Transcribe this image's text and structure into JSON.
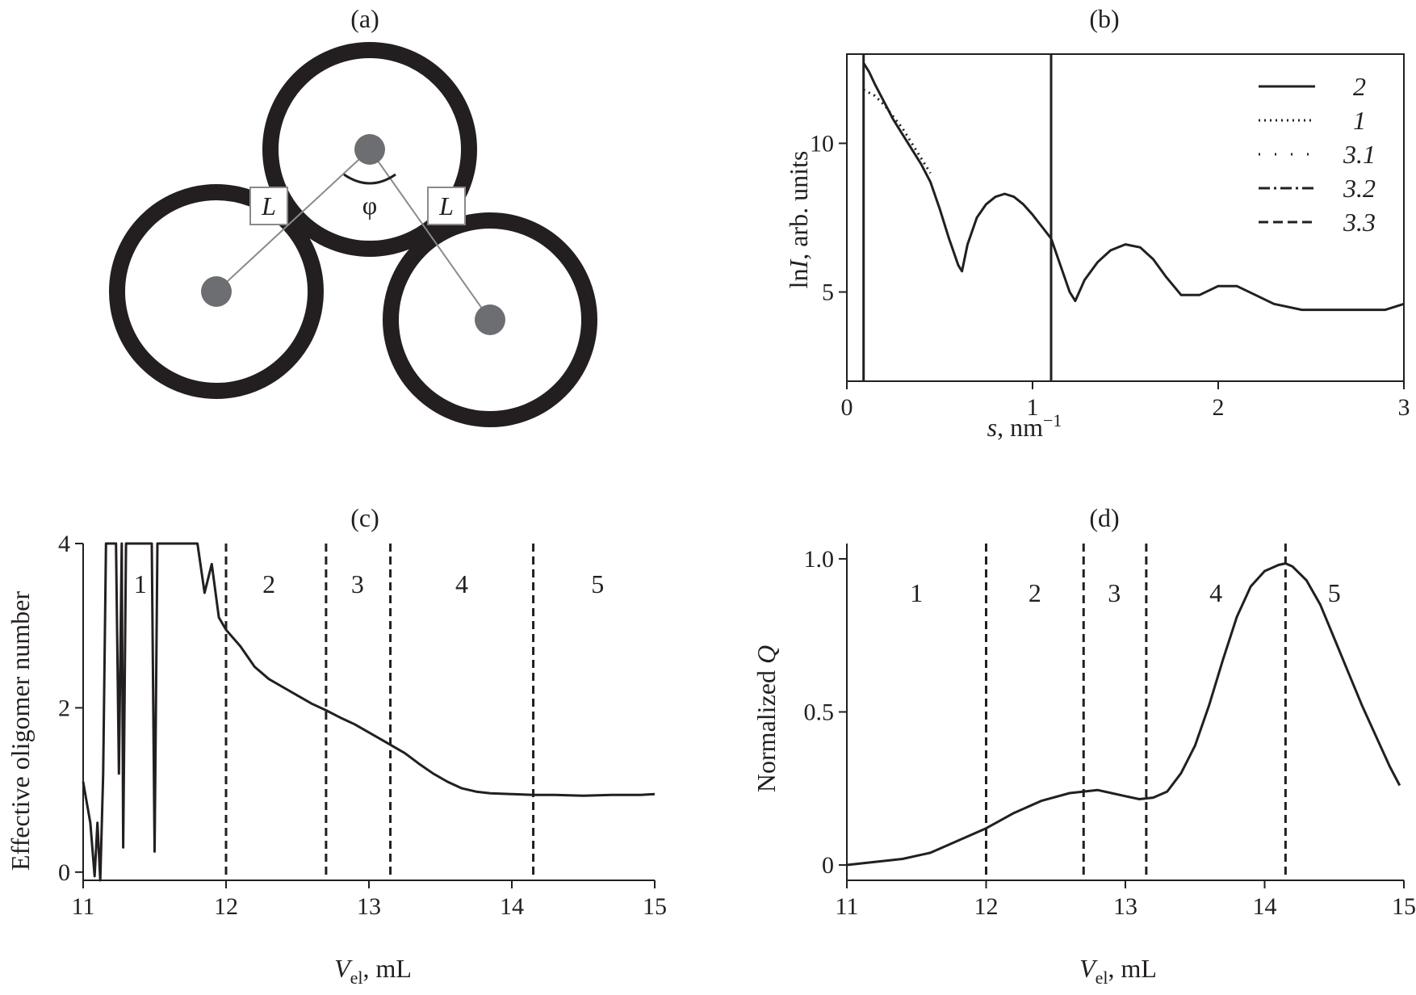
{
  "chart_data": [
    {
      "panel": "(a)",
      "type": "diagram",
      "bond_labels": [
        "L",
        "L"
      ],
      "angle_label": "φ",
      "rings": 3
    },
    {
      "panel": "(b)",
      "type": "line",
      "xlabel": {
        "main": "s",
        "rest": ", nm",
        "sup": "−1"
      },
      "ylabel": {
        "pre": "ln",
        "var": "I",
        "rest": ", arb. units"
      },
      "xlim": [
        0,
        3
      ],
      "ylim": [
        2,
        13
      ],
      "xticks": [
        "0",
        "1",
        "2",
        "3"
      ],
      "yticks": [
        "5",
        "10"
      ],
      "vertical_lines": [
        0.09,
        1.1
      ],
      "legend_position": "top-right",
      "legend": [
        {
          "label": "2",
          "style": "solid"
        },
        {
          "label": "1",
          "style": "dotted"
        },
        {
          "label": "3.1",
          "style": "sparse-dotted"
        },
        {
          "label": "3.2",
          "style": "dash-dot"
        },
        {
          "label": "3.3",
          "style": "dashed"
        }
      ],
      "series": [
        {
          "style": "solid",
          "x": [
            0.09,
            0.12,
            0.15,
            0.2,
            0.25,
            0.3,
            0.35,
            0.4,
            0.45,
            0.5,
            0.55,
            0.6,
            0.62,
            0.65,
            0.7,
            0.75,
            0.8,
            0.85,
            0.9,
            0.95,
            1.0,
            1.05,
            1.1,
            1.15,
            1.2,
            1.23,
            1.28,
            1.35,
            1.42,
            1.5,
            1.58,
            1.65,
            1.72,
            1.8,
            1.9,
            2.0,
            2.1,
            2.2,
            2.3,
            2.45,
            2.6,
            2.75,
            2.9,
            3.0
          ],
          "y": [
            12.7,
            12.4,
            12.0,
            11.4,
            10.8,
            10.3,
            9.8,
            9.3,
            8.7,
            7.8,
            6.8,
            5.9,
            5.7,
            6.6,
            7.5,
            7.95,
            8.2,
            8.3,
            8.2,
            7.95,
            7.6,
            7.2,
            6.8,
            5.9,
            5.0,
            4.7,
            5.4,
            6.0,
            6.4,
            6.6,
            6.5,
            6.1,
            5.5,
            4.9,
            4.9,
            5.2,
            5.2,
            4.9,
            4.6,
            4.4,
            4.4,
            4.4,
            4.4,
            4.6
          ]
        },
        {
          "style": "dotted",
          "x": [
            0.09,
            0.15,
            0.2,
            0.25,
            0.3,
            0.35,
            0.4,
            0.45
          ],
          "y": [
            11.8,
            11.6,
            11.3,
            10.9,
            10.5,
            10.0,
            9.5,
            9.0
          ]
        }
      ]
    },
    {
      "panel": "(c)",
      "type": "line",
      "xlabel": {
        "main": "V",
        "sub": "el",
        "rest": ", mL"
      },
      "ylabel": "Effective oligomer number",
      "xlim": [
        11,
        15
      ],
      "ylim": [
        -0.1,
        4
      ],
      "xticks": [
        "11",
        "12",
        "13",
        "14",
        "15"
      ],
      "yticks": [
        "0",
        "2",
        "4"
      ],
      "vertical_lines": [
        12.0,
        12.7,
        13.15,
        14.15
      ],
      "regions": [
        {
          "label": "1",
          "x": 11.4,
          "y": 3.4
        },
        {
          "label": "2",
          "x": 12.3,
          "y": 3.4
        },
        {
          "label": "3",
          "x": 12.92,
          "y": 3.4
        },
        {
          "label": "4",
          "x": 13.65,
          "y": 3.4
        },
        {
          "label": "5",
          "x": 14.6,
          "y": 3.4
        }
      ],
      "series": [
        {
          "style": "solid",
          "x": [
            11.0,
            11.02,
            11.05,
            11.08,
            11.1,
            11.12,
            11.14,
            11.16,
            11.18,
            11.2,
            11.23,
            11.25,
            11.27,
            11.28,
            11.3,
            11.32,
            11.35,
            11.4,
            11.45,
            11.48,
            11.5,
            11.52,
            11.55,
            11.6,
            11.65,
            11.7,
            11.75,
            11.8,
            11.85,
            11.9,
            11.95,
            12.0,
            12.1,
            12.2,
            12.3,
            12.4,
            12.5,
            12.6,
            12.7,
            12.8,
            12.9,
            13.0,
            13.1,
            13.15,
            13.25,
            13.35,
            13.45,
            13.55,
            13.65,
            13.75,
            13.85,
            14.0,
            14.15,
            14.3,
            14.5,
            14.7,
            14.9,
            15.0
          ],
          "y": [
            1.1,
            0.9,
            0.6,
            -0.05,
            0.6,
            -0.1,
            1.2,
            4.0,
            4.0,
            4.0,
            4.0,
            1.2,
            4.0,
            0.3,
            4.0,
            4.0,
            4.0,
            4.0,
            4.0,
            4.0,
            0.25,
            4.0,
            4.0,
            4.0,
            4.0,
            4.0,
            4.0,
            4.0,
            3.4,
            3.75,
            3.1,
            2.95,
            2.75,
            2.5,
            2.35,
            2.25,
            2.15,
            2.05,
            1.97,
            1.88,
            1.8,
            1.7,
            1.6,
            1.55,
            1.45,
            1.32,
            1.2,
            1.1,
            1.02,
            0.98,
            0.96,
            0.95,
            0.94,
            0.94,
            0.93,
            0.94,
            0.94,
            0.95
          ]
        }
      ]
    },
    {
      "panel": "(d)",
      "type": "line",
      "xlabel": {
        "main": "V",
        "sub": "el",
        "rest": ", mL"
      },
      "ylabel": {
        "pre": "Normalized ",
        "var": "Q"
      },
      "xlim": [
        11,
        15
      ],
      "ylim": [
        -0.05,
        1.05
      ],
      "xticks": [
        "11",
        "12",
        "13",
        "14",
        "15"
      ],
      "yticks": [
        "0",
        "0.5",
        "1.0"
      ],
      "vertical_lines": [
        12.0,
        12.7,
        13.15,
        14.15
      ],
      "regions": [
        {
          "label": "1",
          "x": 11.5,
          "y": 0.86
        },
        {
          "label": "2",
          "x": 12.35,
          "y": 0.86
        },
        {
          "label": "3",
          "x": 12.92,
          "y": 0.86
        },
        {
          "label": "4",
          "x": 13.65,
          "y": 0.86
        },
        {
          "label": "5",
          "x": 14.5,
          "y": 0.86
        }
      ],
      "series": [
        {
          "style": "solid",
          "x": [
            11.0,
            11.2,
            11.4,
            11.6,
            11.8,
            12.0,
            12.2,
            12.4,
            12.6,
            12.7,
            12.8,
            12.9,
            13.0,
            13.1,
            13.2,
            13.3,
            13.4,
            13.5,
            13.6,
            13.7,
            13.8,
            13.9,
            14.0,
            14.1,
            14.15,
            14.2,
            14.3,
            14.4,
            14.5,
            14.6,
            14.7,
            14.8,
            14.9,
            14.97
          ],
          "y": [
            0.0,
            0.01,
            0.02,
            0.04,
            0.08,
            0.12,
            0.17,
            0.21,
            0.235,
            0.24,
            0.245,
            0.235,
            0.225,
            0.215,
            0.22,
            0.24,
            0.3,
            0.39,
            0.52,
            0.67,
            0.81,
            0.91,
            0.96,
            0.98,
            0.985,
            0.975,
            0.93,
            0.85,
            0.74,
            0.63,
            0.52,
            0.42,
            0.32,
            0.26
          ]
        }
      ]
    }
  ]
}
